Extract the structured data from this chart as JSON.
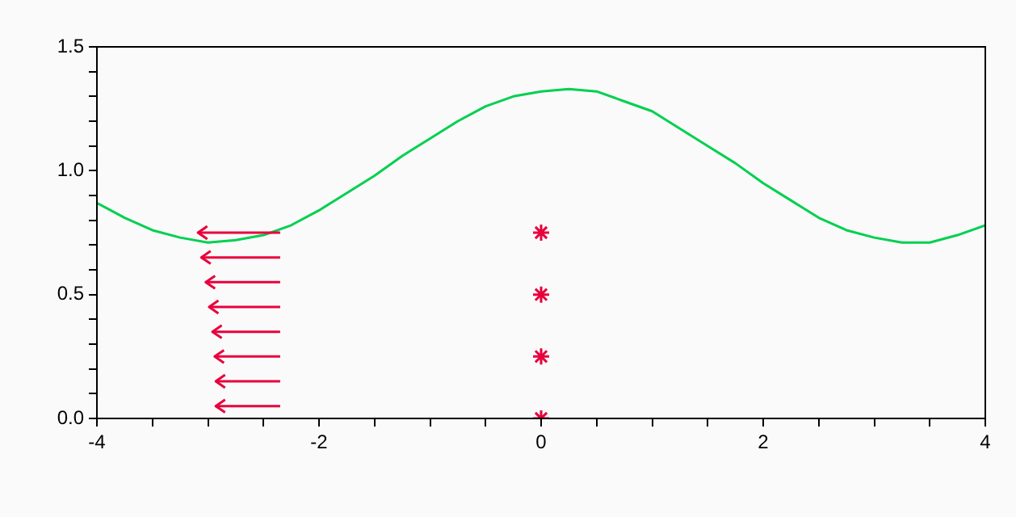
{
  "chart_data": {
    "type": "line",
    "xlim": [
      -4,
      4
    ],
    "ylim": [
      0,
      1.5
    ],
    "xticks": [
      -4,
      {
        "value": -3.5,
        "label": null
      },
      {
        "value": -3,
        "label": null
      },
      {
        "value": -2.5,
        "label": null
      },
      -2,
      {
        "value": -1.5,
        "label": null
      },
      {
        "value": -1,
        "label": null
      },
      {
        "value": -0.5,
        "label": null
      },
      0,
      {
        "value": 0.5,
        "label": null
      },
      {
        "value": 1,
        "label": null
      },
      {
        "value": 1.5,
        "label": null
      },
      2,
      {
        "value": 2.5,
        "label": null
      },
      {
        "value": 3,
        "label": null
      },
      {
        "value": 3.5,
        "label": null
      },
      4
    ],
    "yticks": [
      {
        "value": 0,
        "label": "0.0"
      },
      {
        "value": 0.1,
        "label": null
      },
      {
        "value": 0.2,
        "label": null
      },
      {
        "value": 0.3,
        "label": null
      },
      {
        "value": 0.4,
        "label": null
      },
      {
        "value": 0.5,
        "label": "0.5"
      },
      {
        "value": 0.6,
        "label": null
      },
      {
        "value": 0.7,
        "label": null
      },
      {
        "value": 0.8,
        "label": null
      },
      {
        "value": 0.9,
        "label": null
      },
      {
        "value": 1,
        "label": "1.0"
      },
      {
        "value": 1.1,
        "label": null
      },
      {
        "value": 1.2,
        "label": null
      },
      {
        "value": 1.3,
        "label": null
      },
      {
        "value": 1.4,
        "label": null
      },
      {
        "value": 1.5,
        "label": "1.5"
      }
    ],
    "grid": false,
    "legend": false,
    "marker": "none",
    "series": [
      {
        "type": "line",
        "color": "#00d050",
        "x": [
          -4,
          -3.75,
          -3.5,
          -3.25,
          -3,
          -2.75,
          -2.5,
          -2.25,
          -2,
          -1.75,
          -1.5,
          -1.25,
          -1,
          -0.75,
          -0.5,
          -0.25,
          0,
          0.25,
          0.5,
          0.75,
          1,
          1.25,
          1.5,
          1.75,
          2,
          2.25,
          2.5,
          2.75,
          3,
          3.25,
          3.5,
          3.75,
          4
        ],
        "values": [
          0.87,
          0.81,
          0.76,
          0.73,
          0.71,
          0.72,
          0.74,
          0.78,
          0.84,
          0.91,
          0.98,
          1.06,
          1.13,
          1.2,
          1.26,
          1.3,
          1.32,
          1.33,
          1.32,
          1.28,
          1.24,
          1.17,
          1.1,
          1.03,
          0.95,
          0.88,
          0.81,
          0.76,
          0.73,
          0.71,
          0.71,
          0.74,
          0.78
        ]
      },
      {
        "type": "line",
        "color": "#e8003c",
        "x": [
          -2.35,
          -3.09
        ],
        "values": [
          0.75,
          0.75
        ]
      },
      {
        "type": "line",
        "color": "#e8003c",
        "x": [
          -2.35,
          -3.06
        ],
        "values": [
          0.65,
          0.65
        ]
      },
      {
        "type": "line",
        "color": "#e8003c",
        "x": [
          -2.35,
          -3.02
        ],
        "values": [
          0.55,
          0.55
        ]
      },
      {
        "type": "line",
        "color": "#e8003c",
        "x": [
          -2.35,
          -2.99
        ],
        "values": [
          0.45,
          0.45
        ]
      },
      {
        "type": "line",
        "color": "#e8003c",
        "x": [
          -2.35,
          -2.96
        ],
        "values": [
          0.35,
          0.35
        ]
      },
      {
        "type": "line",
        "color": "#e8003c",
        "x": [
          -2.35,
          -2.94
        ],
        "values": [
          0.25,
          0.25
        ]
      },
      {
        "type": "line",
        "color": "#e8003c",
        "x": [
          -2.35,
          -2.93
        ],
        "values": [
          0.15,
          0.15
        ]
      },
      {
        "type": "line",
        "color": "#e8003c",
        "x": [
          -2.35,
          -2.93
        ],
        "values": [
          0.05,
          0.05
        ]
      },
      {
        "type": "scatter",
        "marker": "cross",
        "color": "#e8003c",
        "x": [
          0,
          0,
          0,
          0
        ],
        "values": [
          0,
          0.25,
          0.5,
          0.75
        ]
      }
    ]
  }
}
